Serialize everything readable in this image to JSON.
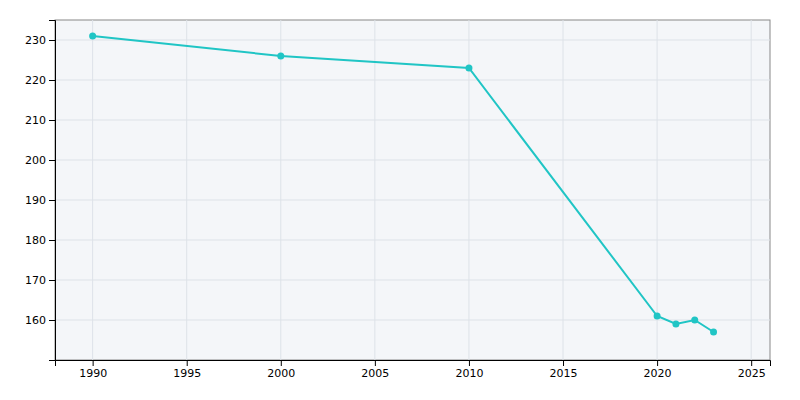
{
  "chart_data": {
    "type": "line",
    "x": [
      1990,
      2000,
      2010,
      2020,
      2021,
      2022,
      2023
    ],
    "values": [
      231,
      226,
      223,
      161,
      159,
      160,
      157
    ],
    "color": "#20C5C5",
    "marker": "circle",
    "xlim": [
      1988,
      2026
    ],
    "ylim": [
      150,
      235
    ],
    "xticks": [
      1990,
      1995,
      2000,
      2005,
      2010,
      2015,
      2020,
      2025
    ],
    "yticks": [
      160,
      170,
      180,
      190,
      200,
      210,
      220,
      230
    ],
    "grid": true
  }
}
